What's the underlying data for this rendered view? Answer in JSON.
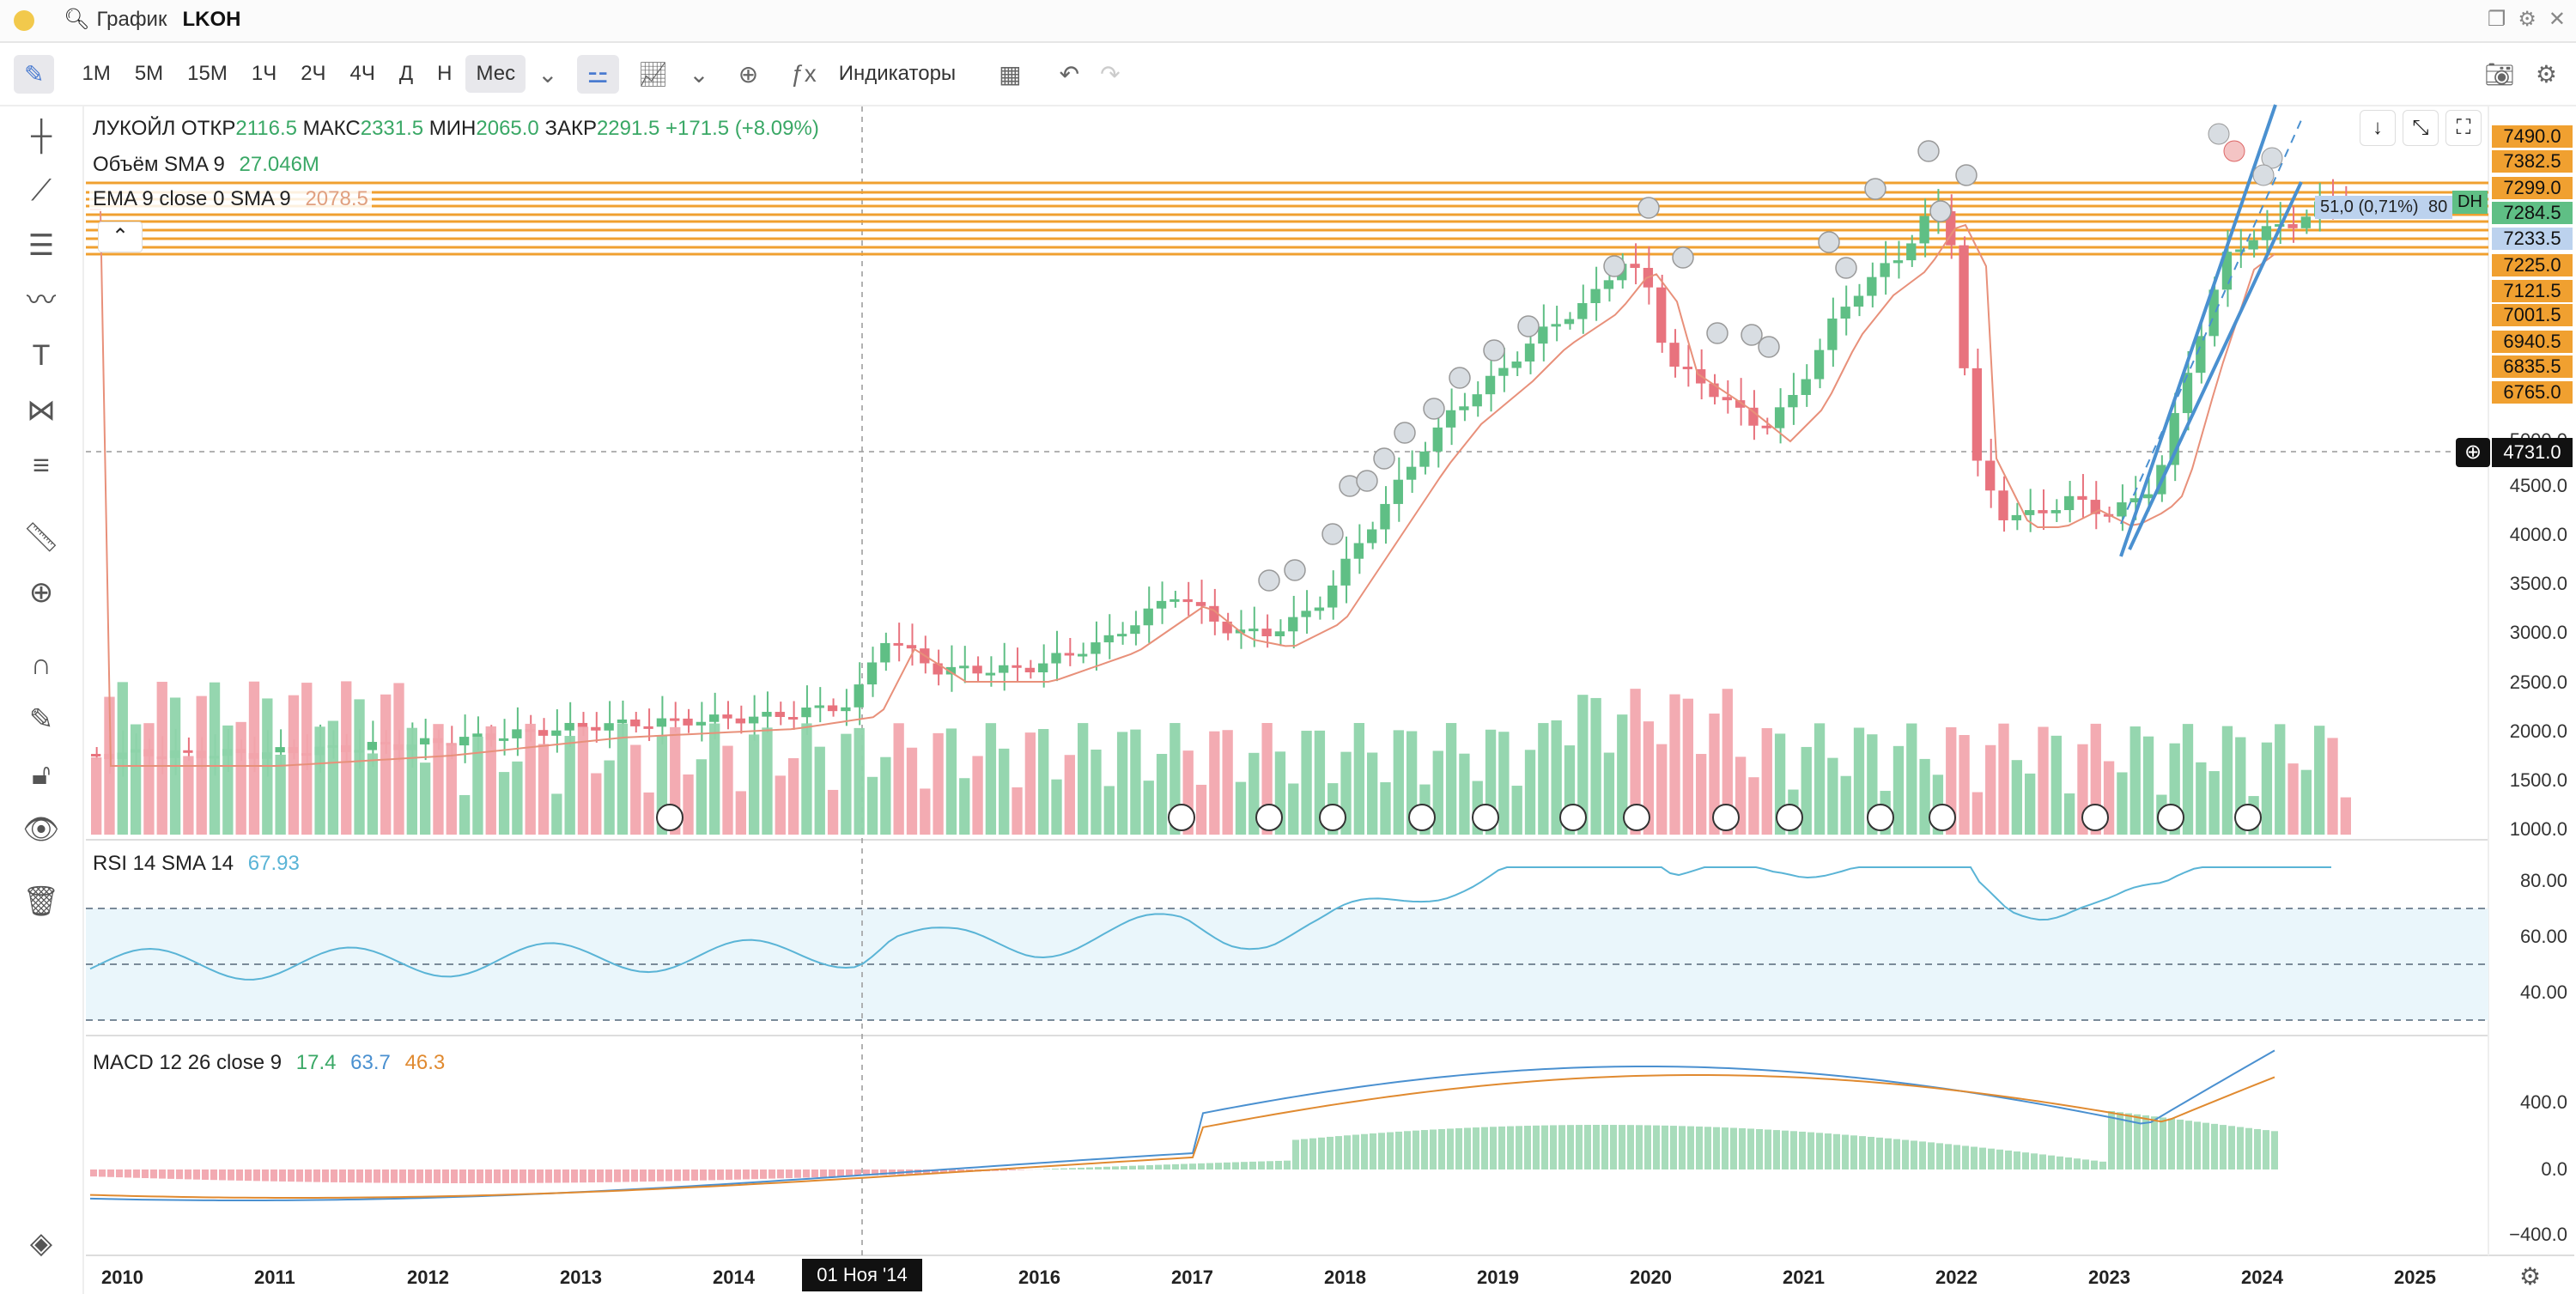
{
  "window": {
    "title_label": "График",
    "ticker": "LKOH"
  },
  "toolbar": {
    "intervals": [
      "1М",
      "5М",
      "15М",
      "1Ч",
      "2Ч",
      "4Ч",
      "Д",
      "Н",
      "Мес"
    ],
    "active_interval": "Мес",
    "indicators_label": "Индикаторы"
  },
  "legend": {
    "name": "ЛУКОЙЛ",
    "open_label": "ОТКР",
    "open": "2116.5",
    "high_label": "МАКС",
    "high": "2331.5",
    "low_label": "МИН",
    "low": "2065.0",
    "close_label": "ЗАКР",
    "close": "2291.5",
    "change": "+171.5 (+8.09%)",
    "volume_label": "Объём SMA 9",
    "volume_value": "27.046M",
    "ema_label": "EMA 9 close 0 SMA 9",
    "ema_value": "2078.5"
  },
  "rsi": {
    "label": "RSI 14 SMA 14",
    "value": "67.93"
  },
  "macd": {
    "label": "MACD 12 26 close 9",
    "v1": "17.4",
    "v2": "63.7",
    "v3": "46.3"
  },
  "price_axis": {
    "orange_labels": [
      "7490.0",
      "7382.5",
      "7299.0",
      "7284.5",
      "7233.5",
      "7225.0",
      "7121.5",
      "7001.5",
      "6940.5",
      "6835.5",
      "6765.0"
    ],
    "scale_labels": [
      "5000.0",
      "4500.0",
      "4000.0",
      "3500.0",
      "3000.0",
      "2500.0",
      "2000.0",
      "1500.0",
      "1000.0"
    ],
    "crosshair_price": "4731.0",
    "channel_tag": "51,0 (0,71%)",
    "channel_tag2": "80",
    "green_tag": "DH"
  },
  "rsi_axis": [
    "80.00",
    "60.00",
    "40.00"
  ],
  "macd_axis": [
    "400.0",
    "0.0",
    "−400.0"
  ],
  "time_axis": {
    "years": [
      "2010",
      "2011",
      "2012",
      "2013",
      "2014",
      "2016",
      "2017",
      "2018",
      "2019",
      "2020",
      "2021",
      "2022",
      "2023",
      "2024",
      "2025"
    ],
    "crosshair_date": "01 Ноя '14"
  },
  "markers": {
    "dividend": "D",
    "info": "I",
    "trade": "T",
    "sell": "S"
  },
  "colors": {
    "up": "#5fbf85",
    "down": "#e8737e",
    "orange": "#f0a030",
    "blue": "#4a90d0",
    "rsi": "#5ab4d6"
  },
  "chart_data": {
    "type": "candlestick",
    "series": [
      {
        "name": "ЛУКОЙЛ",
        "timeframe": "Мес"
      }
    ],
    "last": {
      "open": 2116.5,
      "high": 2331.5,
      "low": 2065.0,
      "close": 2291.5
    },
    "price_range": [
      1000,
      7490
    ],
    "x_range": [
      "2010",
      "2025"
    ]
  }
}
